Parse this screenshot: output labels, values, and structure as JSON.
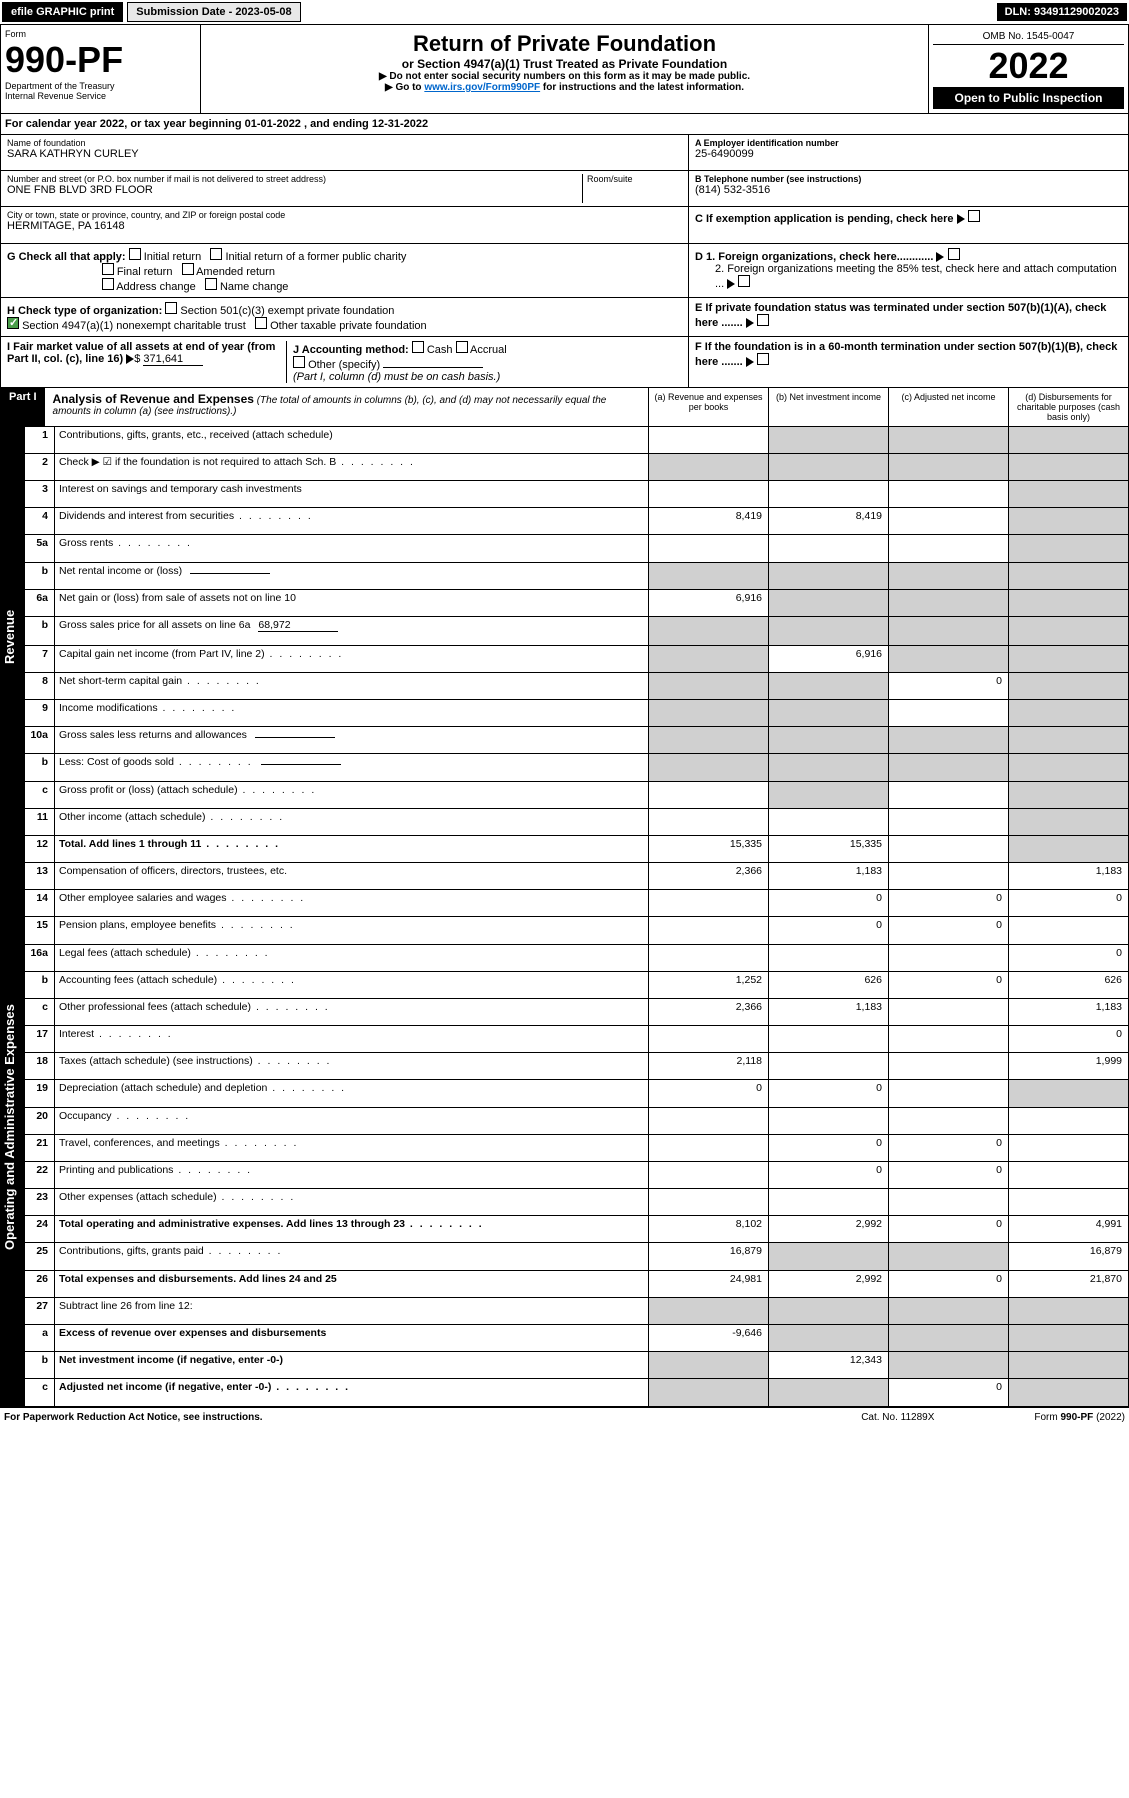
{
  "topbar": {
    "efile": "efile GRAPHIC print",
    "submission": "Submission Date - 2023-05-08",
    "dln": "DLN: 93491129002023"
  },
  "header": {
    "form_label": "Form",
    "form_number": "990-PF",
    "dept": "Department of the Treasury",
    "irs": "Internal Revenue Service",
    "title": "Return of Private Foundation",
    "subtitle": "or Section 4947(a)(1) Trust Treated as Private Foundation",
    "instr1": "▶ Do not enter social security numbers on this form as it may be made public.",
    "instr2_pre": "▶ Go to ",
    "instr2_link": "www.irs.gov/Form990PF",
    "instr2_post": " for instructions and the latest information.",
    "omb": "OMB No. 1545-0047",
    "year": "2022",
    "open": "Open to Public Inspection"
  },
  "calyear": {
    "text_pre": "For calendar year 2022, or tax year beginning ",
    "begin": "01-01-2022",
    "text_mid": " , and ending ",
    "end": "12-31-2022"
  },
  "foundation": {
    "name_label": "Name of foundation",
    "name": "SARA KATHRYN CURLEY",
    "addr_label": "Number and street (or P.O. box number if mail is not delivered to street address)",
    "addr": "ONE FNB BLVD 3RD FLOOR",
    "room_label": "Room/suite",
    "city_label": "City or town, state or province, country, and ZIP or foreign postal code",
    "city": "HERMITAGE, PA 16148",
    "ein_label": "A Employer identification number",
    "ein": "25-6490099",
    "phone_label": "B Telephone number (see instructions)",
    "phone": "(814) 532-3516",
    "c_label": "C If exemption application is pending, check here",
    "d1": "D 1. Foreign organizations, check here............",
    "d2": "2. Foreign organizations meeting the 85% test, check here and attach computation ...",
    "e_label": "E If private foundation status was terminated under section 507(b)(1)(A), check here .......",
    "f_label": "F If the foundation is in a 60-month termination under section 507(b)(1)(B), check here .......",
    "g_label": "G Check all that apply:",
    "g_opts": [
      "Initial return",
      "Initial return of a former public charity",
      "Final return",
      "Amended return",
      "Address change",
      "Name change"
    ],
    "h_label": "H Check type of organization:",
    "h_opts": [
      "Section 501(c)(3) exempt private foundation",
      "Section 4947(a)(1) nonexempt charitable trust",
      "Other taxable private foundation"
    ],
    "i_label": "I Fair market value of all assets at end of year (from Part II, col. (c), line 16)",
    "i_val": "371,641",
    "j_label": "J Accounting method:",
    "j_opts": [
      "Cash",
      "Accrual",
      "Other (specify)"
    ],
    "j_note": "(Part I, column (d) must be on cash basis.)"
  },
  "part1": {
    "label": "Part I",
    "title": "Analysis of Revenue and Expenses",
    "note": "(The total of amounts in columns (b), (c), and (d) may not necessarily equal the amounts in column (a) (see instructions).)",
    "cols": {
      "a": "(a) Revenue and expenses per books",
      "b": "(b) Net investment income",
      "c": "(c) Adjusted net income",
      "d": "(d) Disbursements for charitable purposes (cash basis only)"
    }
  },
  "side": {
    "revenue": "Revenue",
    "expenses": "Operating and Administrative Expenses"
  },
  "rows": [
    {
      "n": "1",
      "d": "Contributions, gifts, grants, etc., received (attach schedule)",
      "a": "",
      "b": "shaded",
      "c": "shaded",
      "x": "shaded"
    },
    {
      "n": "2",
      "d": "Check ▶ ☑ if the foundation is not required to attach Sch. B",
      "dot": true,
      "a": "shaded",
      "b": "shaded",
      "c": "shaded",
      "x": "shaded"
    },
    {
      "n": "3",
      "d": "Interest on savings and temporary cash investments",
      "a": "",
      "b": "",
      "c": "",
      "x": "shaded"
    },
    {
      "n": "4",
      "d": "Dividends and interest from securities",
      "dot": true,
      "a": "8,419",
      "b": "8,419",
      "c": "",
      "x": "shaded"
    },
    {
      "n": "5a",
      "d": "Gross rents",
      "dot": true,
      "a": "",
      "b": "",
      "c": "",
      "x": "shaded"
    },
    {
      "n": "b",
      "d": "Net rental income or (loss)",
      "inline": true,
      "a": "shaded",
      "b": "shaded",
      "c": "shaded",
      "x": "shaded"
    },
    {
      "n": "6a",
      "d": "Net gain or (loss) from sale of assets not on line 10",
      "a": "6,916",
      "b": "shaded",
      "c": "shaded",
      "x": "shaded"
    },
    {
      "n": "b",
      "d": "Gross sales price for all assets on line 6a",
      "inline": true,
      "iv": "68,972",
      "a": "shaded",
      "b": "shaded",
      "c": "shaded",
      "x": "shaded"
    },
    {
      "n": "7",
      "d": "Capital gain net income (from Part IV, line 2)",
      "dot": true,
      "a": "shaded",
      "b": "6,916",
      "c": "shaded",
      "x": "shaded"
    },
    {
      "n": "8",
      "d": "Net short-term capital gain",
      "dot": true,
      "a": "shaded",
      "b": "shaded",
      "c": "0",
      "x": "shaded"
    },
    {
      "n": "9",
      "d": "Income modifications",
      "dot": true,
      "a": "shaded",
      "b": "shaded",
      "c": "",
      "x": "shaded"
    },
    {
      "n": "10a",
      "d": "Gross sales less returns and allowances",
      "inline": true,
      "a": "shaded",
      "b": "shaded",
      "c": "shaded",
      "x": "shaded"
    },
    {
      "n": "b",
      "d": "Less: Cost of goods sold",
      "dot": true,
      "inline": true,
      "a": "shaded",
      "b": "shaded",
      "c": "shaded",
      "x": "shaded"
    },
    {
      "n": "c",
      "d": "Gross profit or (loss) (attach schedule)",
      "dot": true,
      "a": "",
      "b": "shaded",
      "c": "",
      "x": "shaded"
    },
    {
      "n": "11",
      "d": "Other income (attach schedule)",
      "dot": true,
      "a": "",
      "b": "",
      "c": "",
      "x": "shaded"
    },
    {
      "n": "12",
      "d": "Total. Add lines 1 through 11",
      "dot": true,
      "bold": true,
      "a": "15,335",
      "b": "15,335",
      "c": "",
      "x": "shaded"
    },
    {
      "n": "13",
      "d": "Compensation of officers, directors, trustees, etc.",
      "a": "2,366",
      "b": "1,183",
      "c": "",
      "x": "1,183"
    },
    {
      "n": "14",
      "d": "Other employee salaries and wages",
      "dot": true,
      "a": "",
      "b": "0",
      "c": "0",
      "x": "0"
    },
    {
      "n": "15",
      "d": "Pension plans, employee benefits",
      "dot": true,
      "a": "",
      "b": "0",
      "c": "0",
      "x": ""
    },
    {
      "n": "16a",
      "d": "Legal fees (attach schedule)",
      "dot": true,
      "a": "",
      "b": "",
      "c": "",
      "x": "0"
    },
    {
      "n": "b",
      "d": "Accounting fees (attach schedule)",
      "dot": true,
      "a": "1,252",
      "b": "626",
      "c": "0",
      "x": "626"
    },
    {
      "n": "c",
      "d": "Other professional fees (attach schedule)",
      "dot": true,
      "a": "2,366",
      "b": "1,183",
      "c": "",
      "x": "1,183"
    },
    {
      "n": "17",
      "d": "Interest",
      "dot": true,
      "a": "",
      "b": "",
      "c": "",
      "x": "0"
    },
    {
      "n": "18",
      "d": "Taxes (attach schedule) (see instructions)",
      "dot": true,
      "a": "2,118",
      "b": "",
      "c": "",
      "x": "1,999"
    },
    {
      "n": "19",
      "d": "Depreciation (attach schedule) and depletion",
      "dot": true,
      "a": "0",
      "b": "0",
      "c": "",
      "x": "shaded"
    },
    {
      "n": "20",
      "d": "Occupancy",
      "dot": true,
      "a": "",
      "b": "",
      "c": "",
      "x": ""
    },
    {
      "n": "21",
      "d": "Travel, conferences, and meetings",
      "dot": true,
      "a": "",
      "b": "0",
      "c": "0",
      "x": ""
    },
    {
      "n": "22",
      "d": "Printing and publications",
      "dot": true,
      "a": "",
      "b": "0",
      "c": "0",
      "x": ""
    },
    {
      "n": "23",
      "d": "Other expenses (attach schedule)",
      "dot": true,
      "a": "",
      "b": "",
      "c": "",
      "x": ""
    },
    {
      "n": "24",
      "d": "Total operating and administrative expenses. Add lines 13 through 23",
      "dot": true,
      "bold": true,
      "a": "8,102",
      "b": "2,992",
      "c": "0",
      "x": "4,991"
    },
    {
      "n": "25",
      "d": "Contributions, gifts, grants paid",
      "dot": true,
      "a": "16,879",
      "b": "shaded",
      "c": "shaded",
      "x": "16,879"
    },
    {
      "n": "26",
      "d": "Total expenses and disbursements. Add lines 24 and 25",
      "bold": true,
      "a": "24,981",
      "b": "2,992",
      "c": "0",
      "x": "21,870"
    },
    {
      "n": "27",
      "d": "Subtract line 26 from line 12:",
      "a": "shaded",
      "b": "shaded",
      "c": "shaded",
      "x": "shaded"
    },
    {
      "n": "a",
      "d": "Excess of revenue over expenses and disbursements",
      "bold": true,
      "a": "-9,646",
      "b": "shaded",
      "c": "shaded",
      "x": "shaded"
    },
    {
      "n": "b",
      "d": "Net investment income (if negative, enter -0-)",
      "bold": true,
      "a": "shaded",
      "b": "12,343",
      "c": "shaded",
      "x": "shaded"
    },
    {
      "n": "c",
      "d": "Adjusted net income (if negative, enter -0-)",
      "dot": true,
      "bold": true,
      "a": "shaded",
      "b": "shaded",
      "c": "0",
      "x": "shaded"
    }
  ],
  "footer": {
    "left": "For Paperwork Reduction Act Notice, see instructions.",
    "center": "Cat. No. 11289X",
    "right": "Form 990-PF (2022)"
  }
}
